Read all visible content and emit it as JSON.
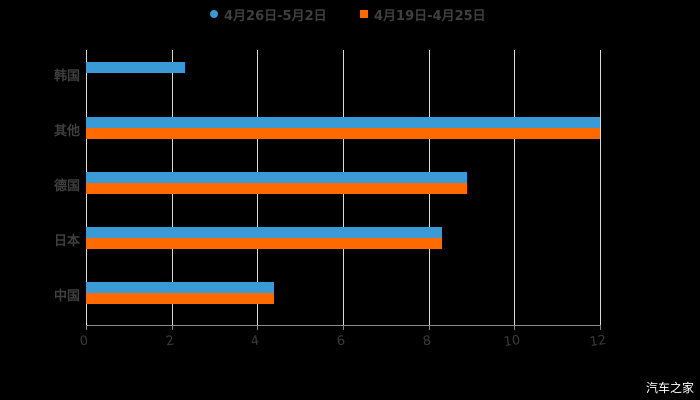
{
  "legend": [
    {
      "label": "4月26日-5月2日",
      "color": "#3a9ad6",
      "marker": "circle"
    },
    {
      "label": "4月19日-4月25日",
      "color": "#ff6a00",
      "marker": "square"
    }
  ],
  "watermark": "汽车之家",
  "chart_data": {
    "type": "bar",
    "orientation": "horizontal",
    "title": "",
    "xlabel": "",
    "ylabel": "",
    "categories": [
      "韩国",
      "其他",
      "德国",
      "日本",
      "中国"
    ],
    "series": [
      {
        "name": "4月26日-5月2日",
        "color": "#3a9ad6",
        "values": [
          2.3,
          12.0,
          8.9,
          8.3,
          4.4
        ]
      },
      {
        "name": "4月19日-4月25日",
        "color": "#ff6a00",
        "values": [
          null,
          12.0,
          8.9,
          8.3,
          4.4
        ]
      }
    ],
    "xlim": [
      0,
      12
    ],
    "xticks": [
      "0",
      "2",
      "4",
      "6",
      "8",
      "10",
      "12"
    ],
    "grid": "vertical",
    "legend_position": "top"
  }
}
